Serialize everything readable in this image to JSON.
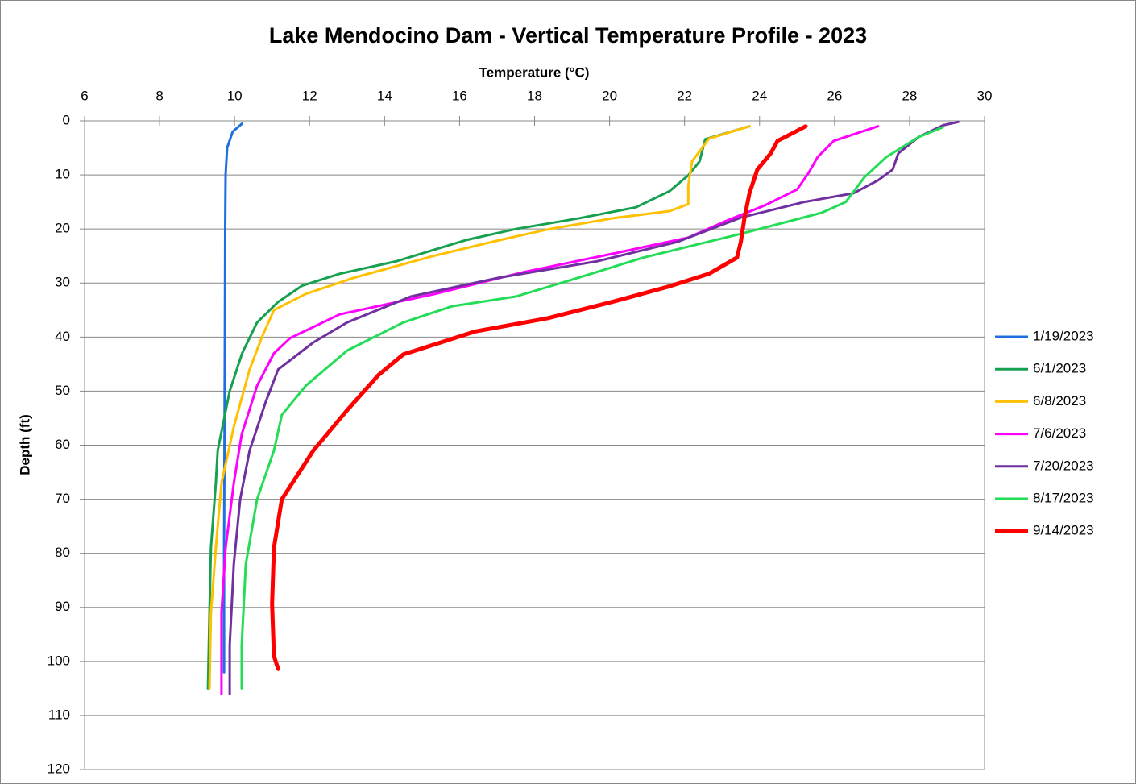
{
  "chart_data": {
    "type": "line",
    "title": "Lake Mendocino Dam - Vertical Temperature Profile - 2023",
    "x_label": "Temperature (°C)",
    "y_label": "Depth (ft)",
    "xlim": [
      6,
      30
    ],
    "xticks": [
      6,
      8,
      10,
      12,
      14,
      16,
      18,
      20,
      22,
      24,
      26,
      28,
      30
    ],
    "ylim": [
      0,
      120
    ],
    "yticks": [
      0,
      10,
      20,
      30,
      40,
      50,
      60,
      70,
      80,
      90,
      100,
      110,
      120
    ],
    "y_inverted": true,
    "x_axis_position": "top",
    "grid": true,
    "legend": "right",
    "series": [
      {
        "name": "1/19/2023",
        "color": "#1f6fe0",
        "width": 3,
        "x": [
          10.2,
          9.95,
          9.8,
          9.76,
          9.75,
          9.74,
          9.73,
          9.72,
          9.72
        ],
        "y": [
          0.5,
          2,
          5,
          10,
          20,
          40,
          60,
          80,
          102
        ]
      },
      {
        "name": "6/1/2023",
        "color": "#17a050",
        "width": 3,
        "x": [
          23.73,
          22.55,
          22.4,
          22.11,
          21.6,
          20.7,
          19.2,
          17.5,
          16.2,
          14.3,
          12.8,
          11.8,
          11.16,
          10.6,
          10.2,
          9.87,
          9.55,
          9.5,
          9.37,
          9.33,
          9.29
        ],
        "y": [
          1,
          3.4,
          7.5,
          10,
          13,
          16,
          18,
          20,
          22,
          26,
          28.3,
          30.5,
          33.5,
          37.3,
          43,
          50,
          61,
          67,
          79,
          91,
          105
        ]
      },
      {
        "name": "6/8/2023",
        "color": "#ffc000",
        "width": 3,
        "x": [
          23.73,
          22.65,
          22.2,
          22.1,
          22.1,
          21.6,
          20.1,
          18.4,
          17.1,
          15.3,
          13.2,
          11.9,
          11.05,
          10.73,
          10.4,
          9.98,
          9.65,
          9.5,
          9.37,
          9.33
        ],
        "y": [
          1,
          3.3,
          7.5,
          12,
          15.4,
          16.7,
          18,
          20,
          22,
          25,
          29,
          32,
          35,
          40,
          46,
          56.6,
          67,
          79,
          91,
          105
        ]
      },
      {
        "name": "7/6/2023",
        "color": "#ff00ff",
        "width": 3,
        "x": [
          27.16,
          25.98,
          25.55,
          25.3,
          25.0,
          24.15,
          23.08,
          22.1,
          20.07,
          17.7,
          15.35,
          12.8,
          11.48,
          11.05,
          10.6,
          10.19,
          9.98,
          9.76,
          9.65,
          9.65
        ],
        "y": [
          1,
          3.7,
          6.7,
          9.7,
          12.7,
          15.6,
          18.6,
          21.6,
          24.6,
          28,
          32,
          35.8,
          40.2,
          43,
          49,
          58,
          67,
          79,
          91,
          106
        ]
      },
      {
        "name": "7/20/2023",
        "color": "#7030a0",
        "width": 3,
        "x": [
          29.3,
          28.9,
          28.24,
          27.7,
          27.55,
          27.16,
          26.5,
          25.2,
          23.5,
          21.8,
          19.65,
          17.07,
          14.7,
          13.0,
          12.1,
          11.16,
          10.83,
          10.4,
          10.15,
          9.98,
          9.87,
          9.87
        ],
        "y": [
          0.2,
          0.8,
          3,
          6,
          9,
          11,
          13.4,
          15,
          17.9,
          22.4,
          26,
          29,
          32.5,
          37.3,
          41,
          46,
          52,
          61,
          70,
          82,
          97,
          106
        ]
      },
      {
        "name": "8/17/2023",
        "color": "#22dd55",
        "width": 3,
        "x": [
          28.88,
          28.24,
          27.38,
          26.8,
          26.3,
          25.66,
          23.5,
          20.9,
          18.8,
          17.5,
          15.8,
          14.5,
          13.0,
          11.9,
          11.26,
          11.05,
          10.6,
          10.3,
          10.19,
          10.19
        ],
        "y": [
          1.2,
          3,
          6.7,
          10.4,
          15,
          17,
          20.9,
          25.3,
          29.8,
          32.5,
          34.3,
          37.3,
          42.5,
          49,
          54.4,
          61,
          70,
          82,
          97,
          105
        ]
      },
      {
        "name": "9/14/2023",
        "color": "#ff0000",
        "width": 5,
        "x": [
          25.23,
          24.9,
          24.48,
          24.3,
          23.94,
          23.73,
          23.6,
          23.5,
          23.4,
          22.65,
          21.6,
          20.07,
          18.35,
          16.4,
          14.5,
          13.84,
          12.98,
          12.1,
          11.26,
          11.05,
          11.0,
          11.05,
          11.16
        ],
        "y": [
          1,
          2.2,
          3.7,
          6,
          9,
          13.4,
          17.9,
          22.4,
          25.3,
          28.3,
          30.6,
          33.5,
          36.5,
          39,
          43.2,
          47,
          53.7,
          61,
          70,
          79,
          89.4,
          99,
          101.4
        ]
      }
    ]
  }
}
